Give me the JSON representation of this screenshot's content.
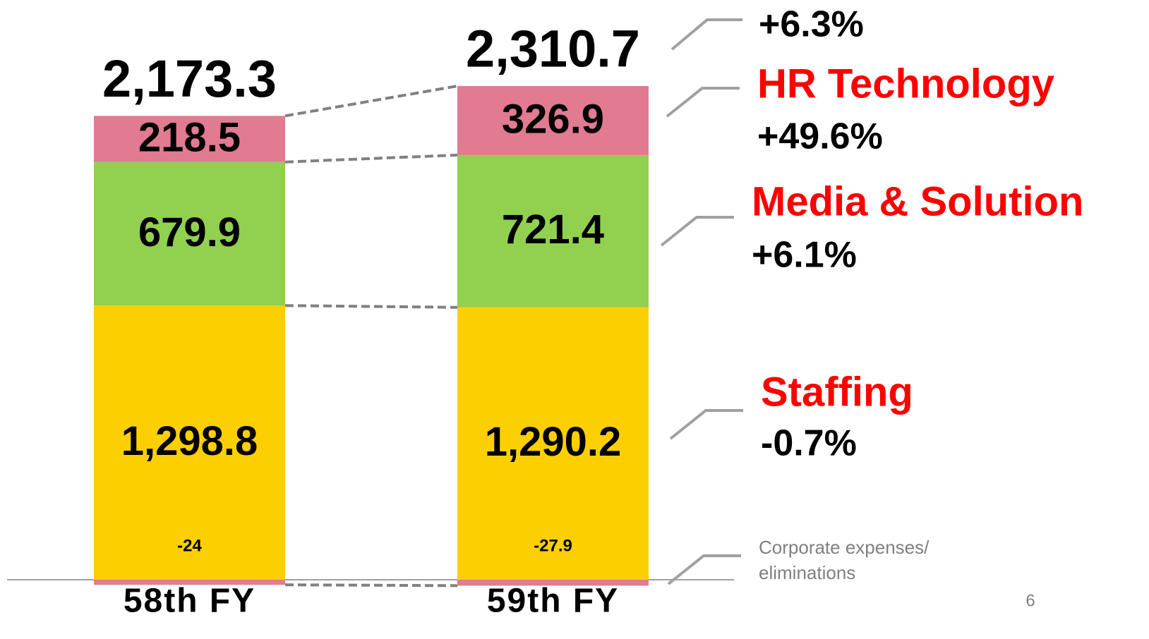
{
  "chart_data": {
    "type": "stacked_bar",
    "categories": [
      "58th FY",
      "59th FY"
    ],
    "series": [
      {
        "name": "Staffing",
        "color": "#fccf00",
        "values": [
          1298.8,
          1290.2
        ],
        "value_labels": [
          "1,298.8",
          "1,290.2"
        ],
        "change": "-0.7%"
      },
      {
        "name": "Media & Solution",
        "color": "#92d050",
        "values": [
          679.9,
          721.4
        ],
        "change": "+6.1%"
      },
      {
        "name": "HR Technology",
        "color": "#e07b91",
        "values": [
          218.5,
          326.9
        ],
        "change": "+49.6%"
      },
      {
        "name": "Corporate expenses/ eliminations",
        "color": "#e07b91",
        "values": [
          -24.0,
          -27.9
        ]
      }
    ],
    "totals": [
      2173.3,
      2310.7
    ],
    "total_labels": [
      "2,173.3",
      "2,310.7"
    ],
    "total_change": "+6.3%",
    "page_number": "6"
  }
}
